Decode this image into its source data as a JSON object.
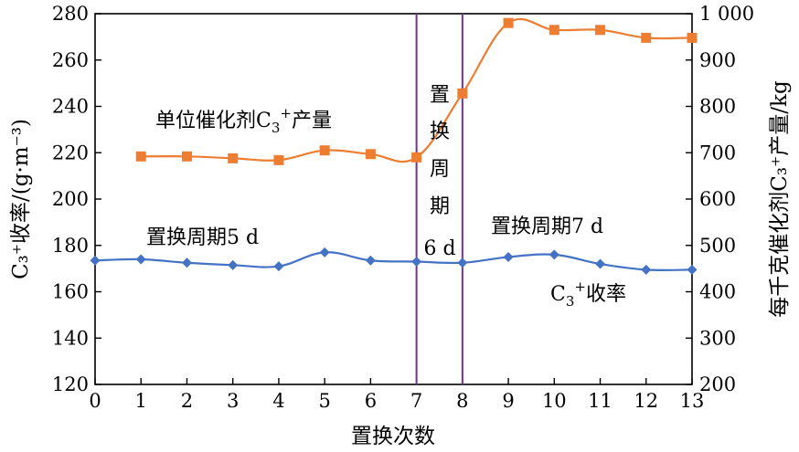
{
  "chart_data": {
    "type": "line",
    "xlabel": "置换次数",
    "ylabel_left": "C₃⁺收率/(g·m⁻³)",
    "ylabel_right": "每千克催化剂C₃⁺产量/kg",
    "x_range": [
      0,
      13
    ],
    "y_left_range": [
      120,
      280
    ],
    "y_right_range": [
      200,
      1000
    ],
    "x_ticks": [
      "0",
      "1",
      "2",
      "3",
      "4",
      "5",
      "6",
      "7",
      "8",
      "9",
      "10",
      "11",
      "12",
      "13"
    ],
    "y_left_ticks": [
      "120",
      "140",
      "160",
      "180",
      "200",
      "220",
      "240",
      "260",
      "280"
    ],
    "y_right_ticks": [
      "200",
      "300",
      "400",
      "500",
      "600",
      "700",
      "800",
      "900",
      "1 000"
    ],
    "grid": false,
    "series": [
      {
        "name": "C3+收率",
        "axis": "left",
        "color": "#4472C4",
        "marker": "diamond",
        "x": [
          0,
          1,
          2,
          3,
          4,
          5,
          6,
          7,
          8,
          9,
          10,
          11,
          12,
          13
        ],
        "values": [
          173.5,
          174,
          172.5,
          171.5,
          171,
          177,
          173.5,
          173,
          172.5,
          175,
          176,
          172,
          169.5,
          169.5
        ]
      },
      {
        "name": "单位催化剂C3+产量",
        "axis": "right",
        "color": "#ED7D31",
        "marker": "square",
        "x": [
          1,
          2,
          3,
          4,
          5,
          6,
          7,
          8,
          9,
          10,
          11,
          12,
          13
        ],
        "values": [
          692,
          692,
          688,
          684,
          705,
          697,
          690,
          828,
          980,
          965,
          965,
          948,
          948
        ]
      }
    ],
    "vertical_lines": [
      {
        "x": 7,
        "color": "#7030A0"
      },
      {
        "x": 8,
        "color": "#7030A0"
      }
    ],
    "annotations": {
      "period5": "置换周期5 d",
      "period6_lines": [
        "置",
        "换",
        "周",
        "期",
        "6 d"
      ],
      "period7": "置换周期7 d",
      "orange_label_prefix": "单位催化剂C",
      "orange_label_sub": "3",
      "orange_label_sup": "+",
      "orange_label_suffix": "产量",
      "blue_label_prefix": "C",
      "blue_label_sub": "3",
      "blue_label_sup": "+",
      "blue_label_suffix": "收率"
    }
  }
}
